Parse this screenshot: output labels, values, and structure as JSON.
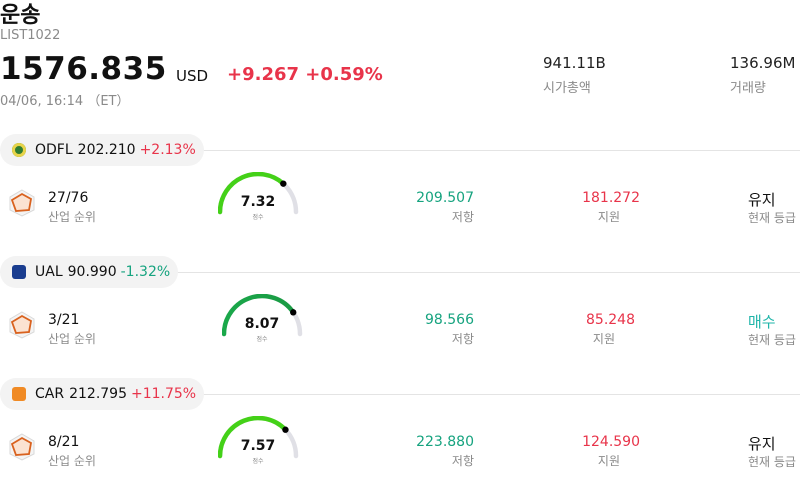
{
  "header": {
    "title": "운송",
    "ticker": "LIST1022",
    "price": "1576.835",
    "currency": "USD",
    "change": "+9.267 +0.59%",
    "time": "04/06, 16:14 （ET）",
    "market_cap_value": "941.11B",
    "market_cap_label": "시가총액",
    "volume_value": "136.96M",
    "volume_label": "거래량"
  },
  "rank_label": "산업 순위",
  "gauge_sub": "점수",
  "resistance_label": "저항",
  "support_label": "지원",
  "signal_label": "현재 등급",
  "stocks": [
    {
      "symbol": "ODFL",
      "price": "202.210",
      "change": "+2.13%",
      "direction": "up",
      "logo_color": "#2e7d32",
      "rank": "27/76",
      "score": 7.32,
      "score_text": "7.32",
      "resistance": "209.507",
      "support": "181.272",
      "signal": "유지",
      "signal_type": "hold"
    },
    {
      "symbol": "UAL",
      "price": "90.990",
      "change": "-1.32%",
      "direction": "down",
      "logo_color": "#1a3d8f",
      "rank": "3/21",
      "score": 8.07,
      "score_text": "8.07",
      "resistance": "98.566",
      "support": "85.248",
      "signal": "매수",
      "signal_type": "buy"
    },
    {
      "symbol": "CAR",
      "price": "212.795",
      "change": "+11.75%",
      "direction": "up",
      "logo_color": "#f08a24",
      "rank": "8/21",
      "score": 7.57,
      "score_text": "7.57",
      "resistance": "223.880",
      "support": "124.590",
      "signal": "유지",
      "signal_type": "hold"
    }
  ],
  "colors": {
    "up": "#e8344a",
    "down": "#16a37f",
    "gauge_light": "#44d118",
    "gauge_dark": "#1aa84a",
    "gauge_track": "#e0e0e6",
    "buy": "#1fb5a9",
    "rank_icon": "#d9621f"
  }
}
